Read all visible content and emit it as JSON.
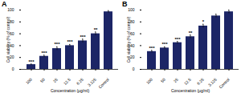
{
  "chart_data": [
    {
      "type": "bar",
      "title": "A",
      "categories": [
        "100",
        "50",
        "25",
        "12.5",
        "6.25",
        "3.125",
        "Control"
      ],
      "values": [
        8,
        22,
        35,
        40,
        48,
        60,
        97
      ],
      "errors": [
        1,
        2,
        3,
        2,
        3,
        3,
        2
      ],
      "annotations": [
        "***",
        "***",
        "***",
        "***",
        "***",
        "**",
        null
      ],
      "color": "#1c2566",
      "x_label": "Concentration (µg/ml)",
      "y_label": "Cell viability (% of control)",
      "ylim": [
        0,
        100
      ],
      "yticks": [
        0,
        20,
        40,
        60,
        80,
        100
      ]
    },
    {
      "type": "bar",
      "title": "B",
      "categories": [
        "100",
        "50",
        "25",
        "12.5",
        "6.25",
        "3.125",
        "Control"
      ],
      "values": [
        30,
        36,
        45,
        55,
        73,
        90,
        97
      ],
      "errors": [
        2,
        2,
        2,
        3,
        3,
        3,
        3
      ],
      "annotations": [
        "***",
        "***",
        "***",
        "**",
        "*",
        null,
        null
      ],
      "color": "#1c2566",
      "x_label": "Concentration (µg/ml)",
      "y_label": "Cell viability (% of control)",
      "ylim": [
        0,
        100
      ],
      "yticks": [
        0,
        20,
        40,
        60,
        80,
        100
      ]
    }
  ]
}
